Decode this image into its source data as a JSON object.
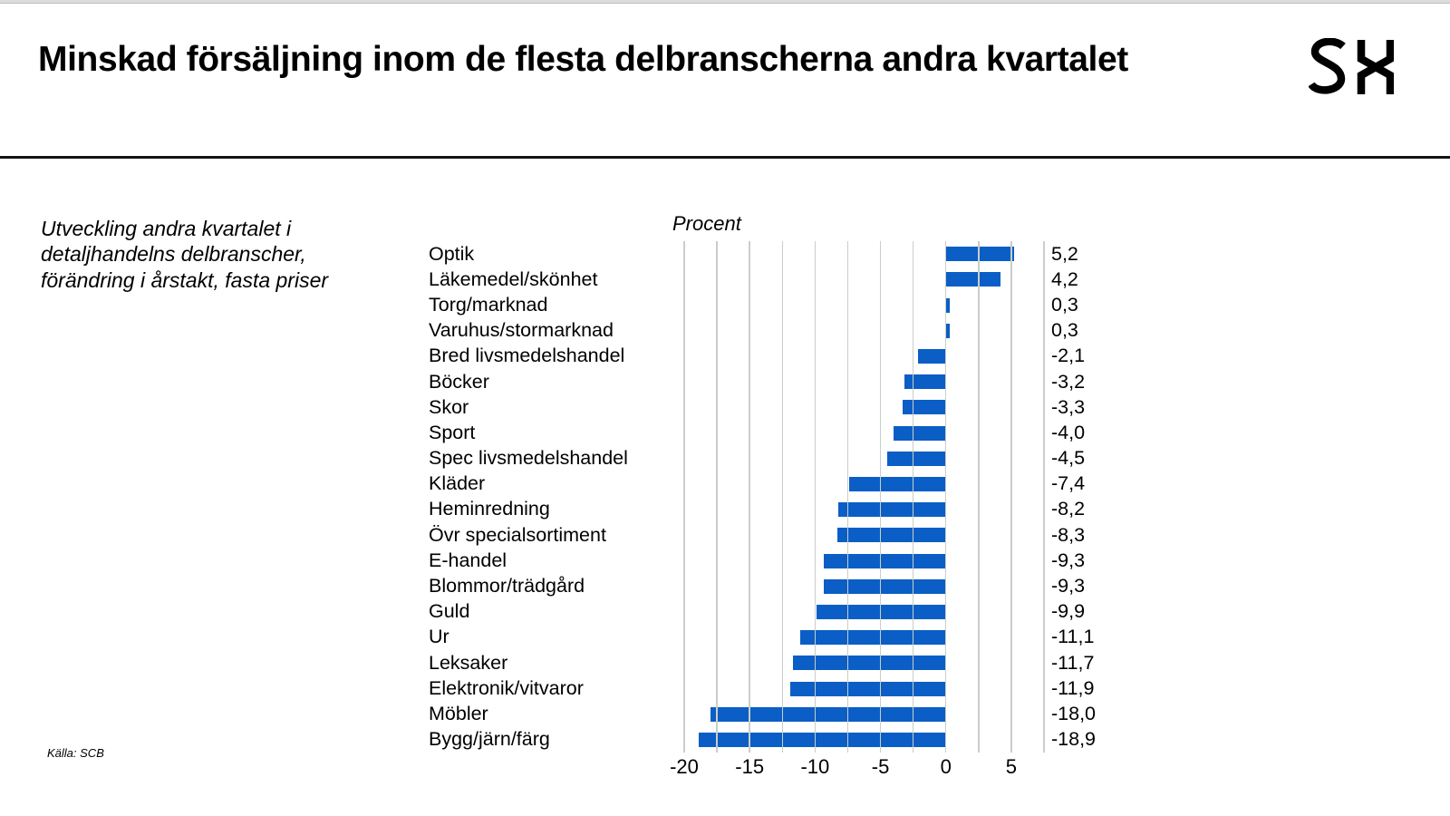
{
  "header": {
    "title": "Minskad försäljning inom de flesta delbranscherna andra kvartalet",
    "logo_text": "SH"
  },
  "note": {
    "text": "Utveckling andra kvartalet i detaljhandelns delbranscher, förändring i årstakt, fasta priser"
  },
  "footer": {
    "source": "Källa: SCB"
  },
  "chart_data": {
    "type": "bar",
    "orientation": "horizontal",
    "axis_title": "Procent",
    "categories": [
      "Optik",
      "Läkemedel/skönhet",
      "Torg/marknad",
      "Varuhus/stormarknad",
      "Bred livsmedelshandel",
      "Böcker",
      "Skor",
      "Sport",
      "Spec livsmedelshandel",
      "Kläder",
      "Heminredning",
      "Övr specialsortiment",
      "E-handel",
      "Blommor/trädgård",
      "Guld",
      "Ur",
      "Leksaker",
      "Elektronik/vitvaror",
      "Möbler",
      "Bygg/järn/färg"
    ],
    "values": [
      5.2,
      4.2,
      0.3,
      0.3,
      -2.1,
      -3.2,
      -3.3,
      -4.0,
      -4.5,
      -7.4,
      -8.2,
      -8.3,
      -9.3,
      -9.3,
      -9.9,
      -11.1,
      -11.7,
      -11.9,
      -18.0,
      -18.9
    ],
    "value_labels": [
      "5,2",
      "4,2",
      "0,3",
      "0,3",
      "-2,1",
      "-3,2",
      "-3,3",
      "-4,0",
      "-4,5",
      "-7,4",
      "-8,2",
      "-8,3",
      "-9,3",
      "-9,3",
      "-9,9",
      "-11,1",
      "-11,7",
      "-11,9",
      "-18,0",
      "-18,9"
    ],
    "x_ticks": [
      -20,
      -15,
      -10,
      -5,
      0,
      5
    ],
    "x_tick_labels": [
      "-20",
      "-15",
      "-10",
      "-5",
      "0",
      "5"
    ],
    "xlim": [
      -20,
      7.5
    ],
    "gridline_step": 2.5,
    "grid": true,
    "bar_color": "#0B5EC6",
    "gridline_color": "#C8CFC8"
  }
}
